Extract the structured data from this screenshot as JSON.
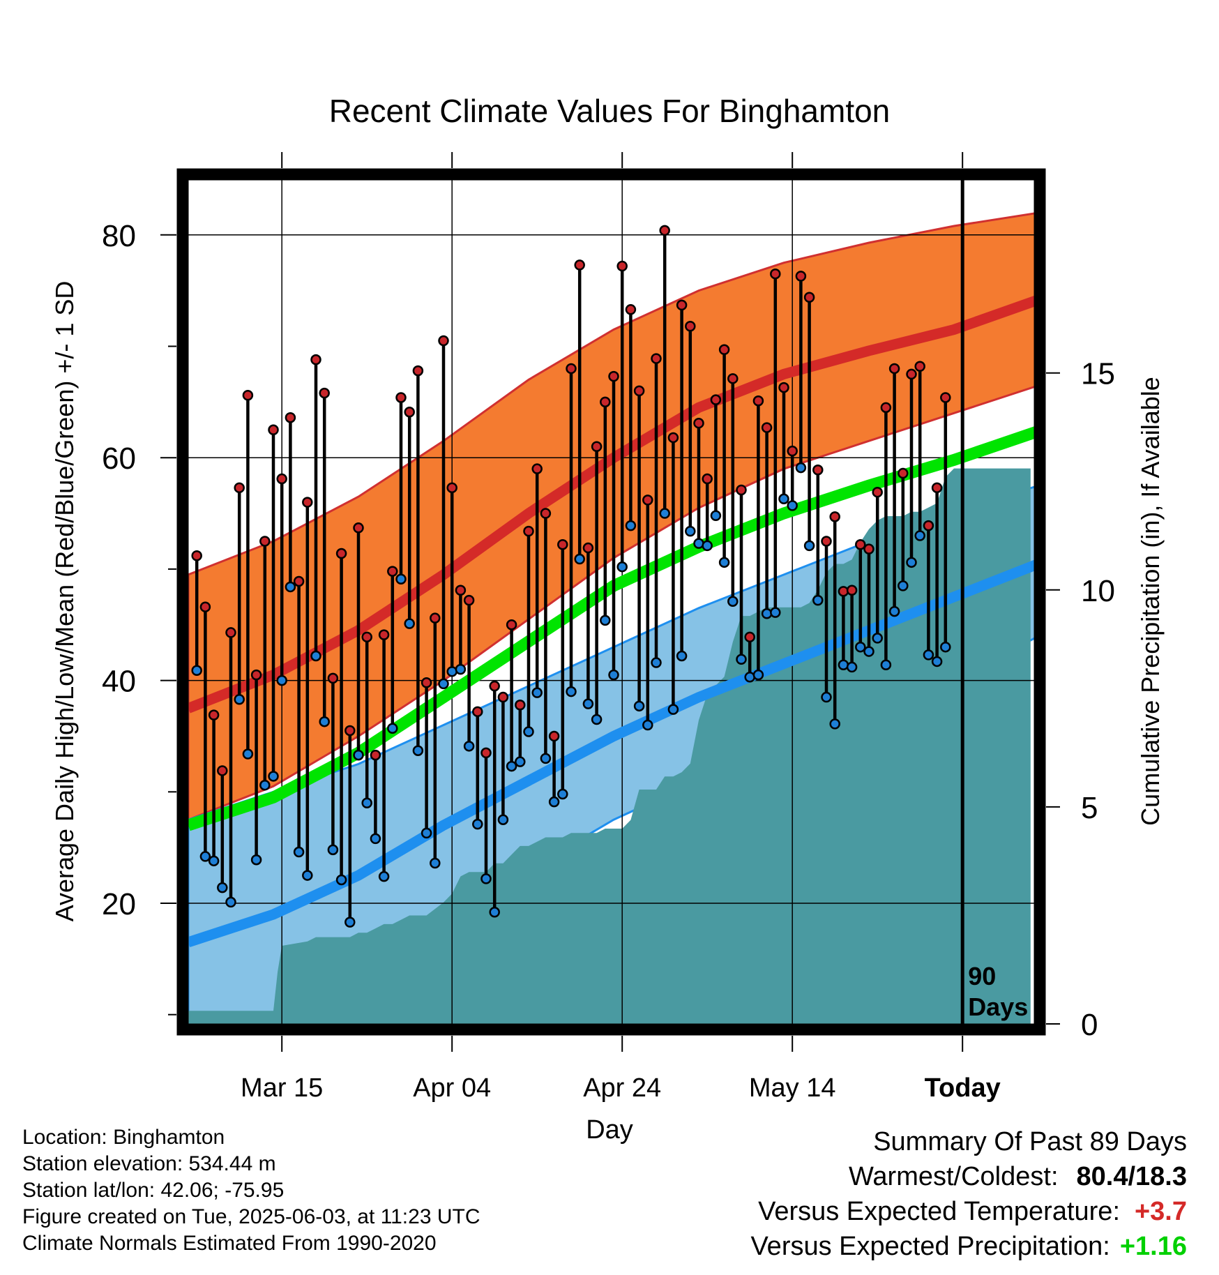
{
  "chart_data": {
    "type": "line",
    "title": "Recent Climate Values For Binghamton",
    "xlabel": "Day",
    "ylabel": "Average Daily High/Low/Mean (Red/Blue/Green) +/- 1 SD",
    "y2label": "Cumulative Precipitation (in), If Available",
    "ylim": [
      7,
      85
    ],
    "y2lim": [
      0,
      18.27
    ],
    "y_ticks": [
      "20",
      "40",
      "60",
      "80"
    ],
    "y2_ticks": [
      "0",
      "5",
      "10",
      "15"
    ],
    "x_ticks": [
      {
        "day": 11,
        "label": "Mar 15"
      },
      {
        "day": 31,
        "label": "Apr 04"
      },
      {
        "day": 51,
        "label": "Apr 24"
      },
      {
        "day": 71,
        "label": "May 14"
      },
      {
        "day": 91,
        "label": "Today"
      }
    ],
    "today_day": 91,
    "today_marker_label": "90 Days",
    "grid": true,
    "colors": {
      "high_band": "#f47b30",
      "high_mean": "#d42a28",
      "low_band": "#86c2e6",
      "low_mean": "#1e8fef",
      "mean": "#00e400",
      "precip": "#4a9aa1",
      "high_dot": "#c8262b",
      "low_dot": "#1e7fd6"
    },
    "normals": {
      "x": [
        0,
        10,
        20,
        30,
        40,
        50,
        60,
        70,
        80,
        90,
        100
      ],
      "high_mean": [
        37.5,
        40.5,
        44.5,
        49.5,
        55,
        60,
        64.5,
        67.5,
        69.6,
        71.5,
        74.2
      ],
      "high_upper": [
        49.5,
        52.5,
        56.5,
        61.5,
        67,
        71.5,
        75,
        77.5,
        79.3,
        80.8,
        82
      ],
      "high_lower": [
        27.5,
        30.5,
        35,
        40,
        45.5,
        51,
        55.5,
        59,
        61.5,
        64,
        66.5
      ],
      "low_mean": [
        16.5,
        19,
        22.5,
        27,
        31,
        35,
        38.5,
        41.5,
        44.5,
        47.5,
        50.5
      ],
      "low_upper": [
        27.5,
        30,
        32.5,
        36,
        39.5,
        43,
        46.5,
        49.5,
        52.5,
        55.2,
        57.5
      ],
      "low_lower": [
        7,
        7,
        11,
        18,
        23,
        27.5,
        31,
        34,
        37,
        40,
        44
      ],
      "mean": [
        27,
        29.5,
        33.5,
        38.5,
        43.5,
        48.5,
        52,
        55,
        57.5,
        59.8,
        62.4
      ]
    },
    "series": [
      {
        "name": "High",
        "values": [
          51.2,
          46.6,
          36.9,
          31.9,
          44.3,
          57.3,
          65.6,
          40.5,
          52.5,
          62.5,
          58.1,
          63.6,
          48.9,
          56,
          68.8,
          65.8,
          40.2,
          51.4,
          35.5,
          53.7,
          43.9,
          33.3,
          44.1,
          49.8,
          65.4,
          64.1,
          67.8,
          39.8,
          45.6,
          70.5,
          57.3,
          48.1,
          47.2,
          37.2,
          33.5,
          39.5,
          38.5,
          45,
          37.8,
          53.4,
          59,
          55,
          35,
          52.2,
          68,
          77.3,
          51.9,
          61,
          65,
          67.3,
          77.2,
          73.3,
          66,
          56.2,
          68.9,
          80.4,
          61.8,
          73.7,
          71.8,
          63.1,
          58.1,
          65.2,
          69.7,
          67.1,
          57.1,
          43.9,
          65.1,
          62.7,
          76.5,
          66.3,
          60.6,
          76.3,
          74.4,
          58.9,
          52.5,
          54.7,
          48,
          48.1,
          52.2,
          51.8,
          56.9,
          64.5,
          68,
          58.6,
          67.5,
          68.2,
          53.9,
          57.3,
          65.4
        ]
      },
      {
        "name": "Low",
        "values": [
          40.9,
          24.2,
          23.8,
          21.4,
          20.1,
          38.3,
          33.4,
          23.9,
          30.6,
          31.4,
          40,
          48.4,
          24.6,
          22.5,
          42.2,
          36.3,
          24.8,
          22.1,
          18.3,
          33.3,
          29,
          25.8,
          22.4,
          35.7,
          49.1,
          45.1,
          33.7,
          26.3,
          23.6,
          39.7,
          40.8,
          41,
          34.1,
          27.1,
          22.2,
          19.2,
          27.5,
          32.3,
          32.7,
          35.4,
          38.9,
          33,
          29.1,
          29.8,
          39,
          50.9,
          37.9,
          36.5,
          45.4,
          40.5,
          50.2,
          53.9,
          37.7,
          36,
          41.6,
          55,
          37.4,
          42.2,
          53.4,
          52.3,
          52.1,
          54.8,
          50.6,
          47.1,
          41.9,
          40.3,
          40.5,
          46,
          46.1,
          56.3,
          55.7,
          59.1,
          52.1,
          47.2,
          38.5,
          36.1,
          41.4,
          41.2,
          43,
          42.6,
          43.8,
          41.4,
          46.2,
          48.5,
          50.6,
          53,
          42.3,
          41.7,
          43
        ]
      }
    ],
    "precip": {
      "x": [
        0,
        10,
        10.5,
        11,
        14,
        15,
        19,
        20,
        21,
        22,
        23,
        24,
        25,
        26,
        27,
        28,
        30,
        31,
        32,
        33,
        35,
        36,
        37,
        38,
        39,
        40,
        41,
        42,
        43,
        44,
        45,
        46,
        48,
        49,
        50,
        51,
        52,
        53,
        54,
        55,
        56,
        57,
        58,
        59,
        60,
        61,
        62,
        63,
        64,
        65,
        66,
        67,
        68,
        69,
        70,
        71,
        72,
        73,
        74,
        75,
        76,
        77,
        78,
        79,
        80,
        81,
        82,
        83,
        84,
        85,
        86,
        87,
        88,
        89,
        90,
        99
      ],
      "values": [
        0.3,
        0.3,
        1.2,
        1.8,
        1.9,
        2,
        2,
        2.1,
        2.1,
        2.2,
        2.3,
        2.3,
        2.4,
        2.5,
        2.5,
        2.5,
        2.8,
        3,
        3.4,
        3.5,
        3.5,
        3.7,
        3.7,
        3.9,
        4.1,
        4.1,
        4.2,
        4.3,
        4.3,
        4.3,
        4.4,
        4.4,
        4.4,
        4.5,
        4.5,
        4.5,
        4.7,
        5.4,
        5.4,
        5.4,
        5.7,
        5.7,
        5.8,
        6,
        7,
        7.6,
        7.8,
        8,
        8.8,
        9.4,
        9.4,
        9.5,
        9.6,
        9.6,
        9.6,
        9.6,
        9.6,
        9.7,
        10,
        10.4,
        10.6,
        10.6,
        10.7,
        11.1,
        11.4,
        11.6,
        11.7,
        11.7,
        11.7,
        11.8,
        11.8,
        11.9,
        12,
        12.6,
        12.8,
        12.8
      ]
    }
  },
  "footer": {
    "location": "Location: Binghamton",
    "elevation": "Station elevation: 534.44 m",
    "latlon": "Station lat/lon: 42.06; -75.95",
    "created": "Figure created on Tue, 2025-06-03, at 11:23 UTC",
    "normals_period": "Climate Normals Estimated From 1990-2020"
  },
  "summary": {
    "heading": "Summary Of Past 89 Days",
    "warmest_label": "Warmest/Coldest:",
    "warmest_value": "80.4/18.3",
    "temp_label": "Versus Expected Temperature:",
    "temp_value": "+3.7",
    "temp_color": "#d42a28",
    "precip_label": "Versus Expected Precipitation:",
    "precip_value": "+1.16",
    "precip_color": "#00d000"
  }
}
